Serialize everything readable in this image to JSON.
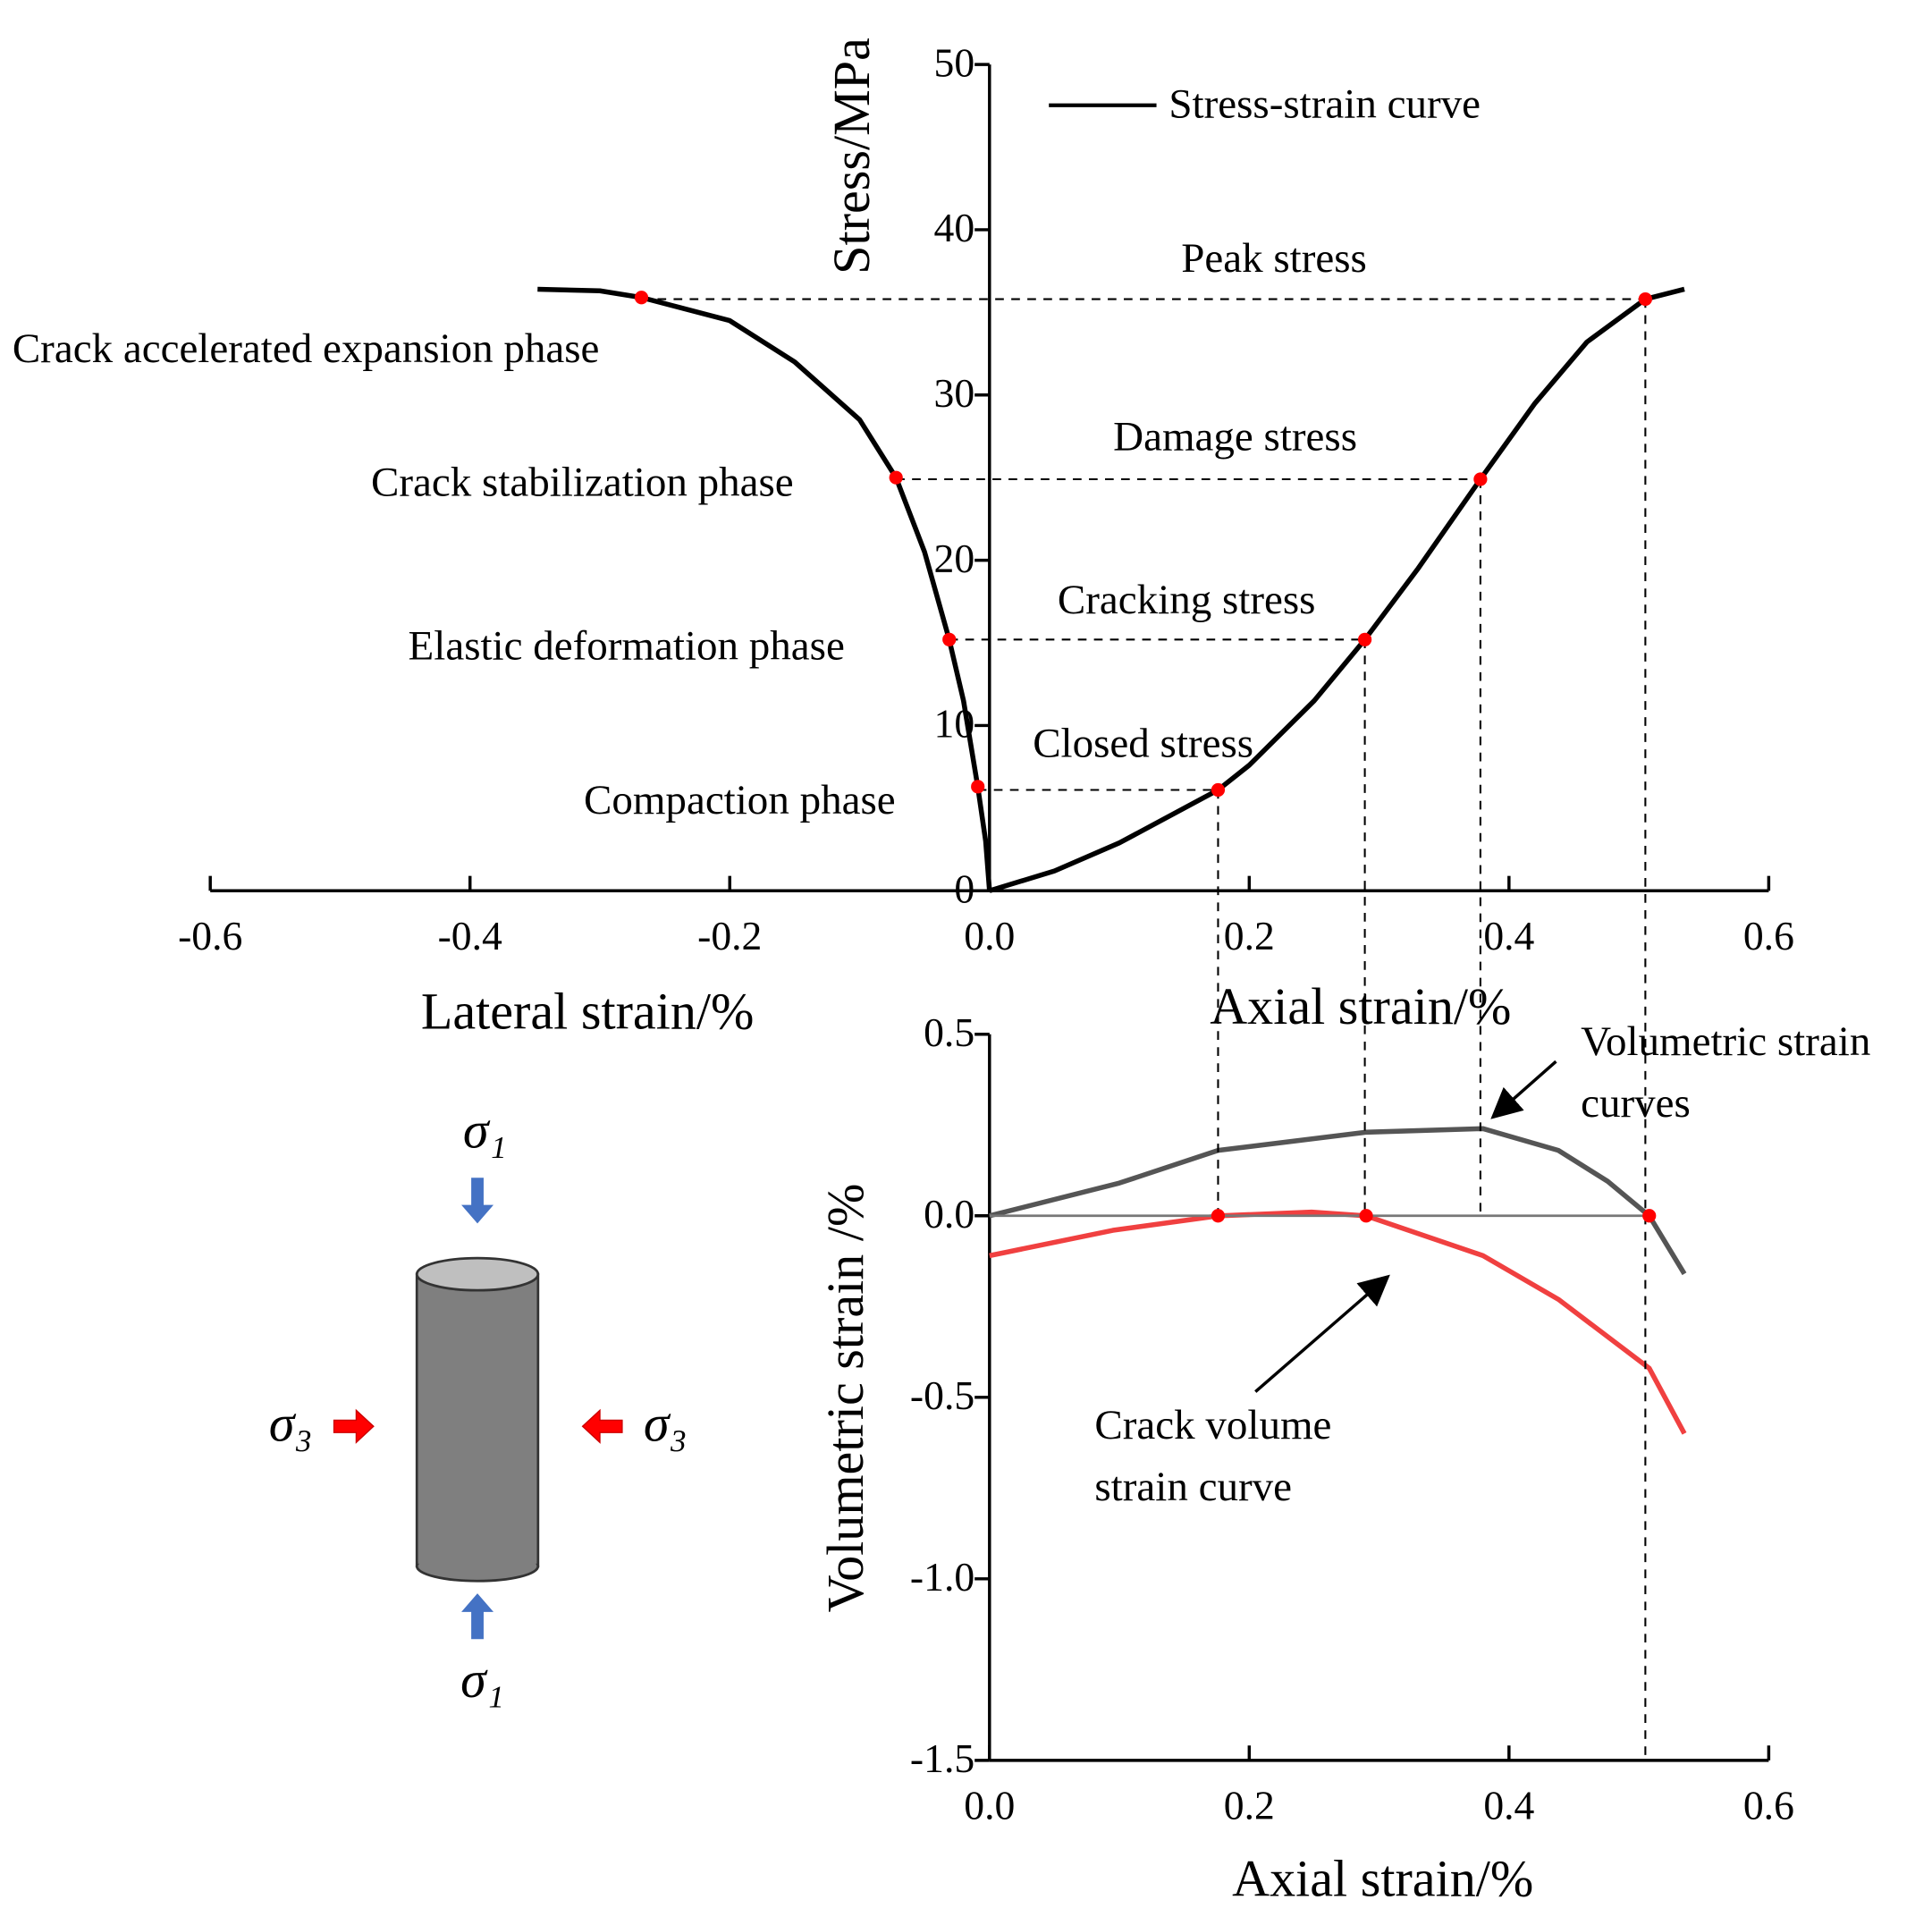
{
  "chart_data": [
    {
      "type": "line",
      "y_label": "Stress/MPa",
      "x_labels": [
        "Lateral strain/%",
        "Axial strain/%"
      ],
      "xlim": [
        -0.6,
        0.6
      ],
      "xticks": [
        -0.6,
        -0.4,
        -0.2,
        {
          "value": 0,
          "label": "0.0"
        },
        0.2,
        0.4,
        0.6
      ],
      "ylim": [
        0,
        50
      ],
      "yticks": [
        0,
        10,
        20,
        30,
        40,
        50
      ],
      "legend": "top-left",
      "series": [
        {
          "name": "Stress-strain curve",
          "color": "#000000",
          "x": [
            -0.348,
            -0.3,
            -0.268,
            -0.2,
            -0.15,
            -0.1,
            -0.072,
            -0.05,
            -0.031,
            -0.02,
            -0.009,
            -0.003,
            0,
            null,
            0,
            0.05,
            0.1,
            0.176,
            0.2,
            0.25,
            0.289,
            0.33,
            0.378,
            0.42,
            0.46,
            0.505,
            0.535
          ],
          "values": [
            36.4,
            36.3,
            35.9,
            34.5,
            32.0,
            28.5,
            25.0,
            20.5,
            15.2,
            11.5,
            6.3,
            3,
            0,
            null,
            0,
            1.2,
            2.9,
            6.1,
            7.6,
            11.5,
            15.2,
            19.5,
            24.9,
            29.5,
            33.2,
            35.8,
            36.4
          ]
        }
      ],
      "markers": {
        "color": "#ff0000",
        "x": [
          -0.009,
          -0.031,
          -0.072,
          -0.268,
          0.176,
          0.289,
          0.378,
          0.505
        ],
        "values": [
          6.3,
          15.2,
          25.0,
          35.9,
          6.1,
          15.2,
          24.9,
          35.8
        ]
      },
      "annotations": [
        "Compaction phase",
        "Elastic deformation phase",
        "Crack stabilization phase",
        "Crack accelerated expansion phase",
        "Closed stress",
        "Cracking stress",
        "Damage stress",
        "Peak stress"
      ]
    },
    {
      "type": "line",
      "y_label": "Volumetric strain /%",
      "x_label": "Axial strain/%",
      "xlim": [
        0,
        0.6
      ],
      "xticks": [
        {
          "value": 0,
          "label": "0.0"
        },
        0.2,
        0.4,
        0.6
      ],
      "ylim": [
        -1.5,
        0.5
      ],
      "yticks": [
        0.5,
        {
          "value": 0,
          "label": "0.0"
        },
        -0.5,
        {
          "value": -1,
          "label": "-1.0"
        },
        -1.5
      ],
      "series": [
        {
          "name": "Volumetric strain curves",
          "color": "#555555",
          "x": [
            0,
            0.1,
            0.176,
            0.29,
            0.38,
            0.438,
            0.476,
            0.508,
            0.535
          ],
          "values": [
            0,
            0.09,
            0.18,
            0.23,
            0.24,
            0.18,
            0.095,
            0,
            -0.16
          ]
        },
        {
          "name": "Crack volume strain curve",
          "color": "#f04040",
          "x": [
            0,
            0.095,
            0.176,
            0.248,
            0.29,
            0.38,
            0.438,
            0.508,
            0.535
          ],
          "values": [
            -0.11,
            -0.04,
            0,
            0.01,
            0,
            -0.11,
            -0.23,
            -0.42,
            -0.6
          ]
        }
      ],
      "markers": {
        "color": "#ff0000",
        "x": [
          0.176,
          0.29,
          0.508
        ],
        "values": [
          0,
          0,
          0
        ]
      },
      "annotations": [
        [
          "Volumetric strain",
          "curves"
        ],
        [
          "Crack volume",
          "strain curve"
        ]
      ]
    }
  ],
  "diagram": {
    "labels": [
      "σ₁",
      "σ₁",
      "σ₃",
      "σ₃"
    ]
  }
}
